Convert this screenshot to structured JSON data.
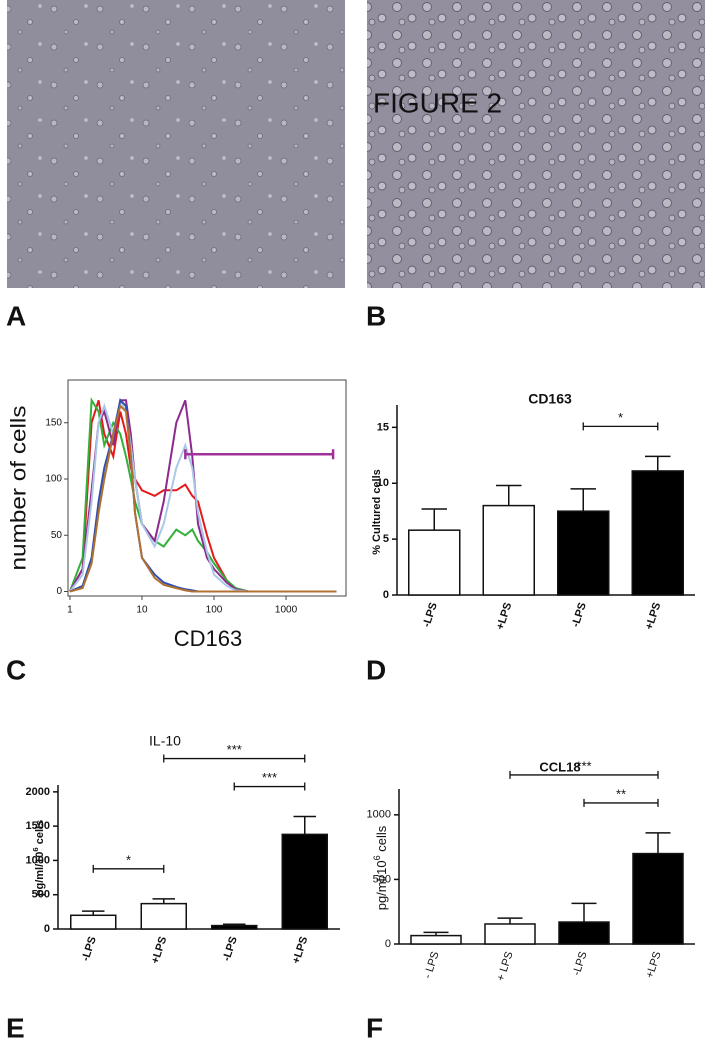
{
  "figure_title": "FIGURE 2",
  "panel_labels": [
    "A",
    "B",
    "C",
    "D",
    "E",
    "F"
  ],
  "chart_data": [
    {
      "type": "line",
      "xlabel": "CD163",
      "ylabel": "number of cells",
      "log_x": true,
      "xlim": [
        0.94,
        6800
      ],
      "ylim": [
        -4,
        188
      ],
      "xticks": [
        1,
        10,
        100,
        1000
      ],
      "yticks": [
        0,
        50,
        100,
        150
      ],
      "x": [
        1,
        1.5,
        2,
        2.5,
        3,
        4,
        5,
        6,
        7,
        8,
        10,
        15,
        20,
        30,
        40,
        50,
        60,
        80,
        100,
        150,
        200,
        300,
        500,
        1000,
        5000
      ],
      "series": [
        {
          "color": "#e41a1c",
          "values": [
            0,
            20,
            150,
            170,
            140,
            120,
            160,
            140,
            110,
            100,
            90,
            85,
            90,
            90,
            95,
            85,
            80,
            50,
            30,
            10,
            2,
            0,
            0,
            0,
            0
          ]
        },
        {
          "color": "#33b03a",
          "values": [
            0,
            30,
            170,
            160,
            130,
            150,
            140,
            120,
            100,
            80,
            60,
            45,
            40,
            55,
            50,
            55,
            45,
            35,
            25,
            10,
            3,
            0,
            0,
            0,
            0
          ]
        },
        {
          "color": "#8e2a8e",
          "values": [
            0,
            20,
            90,
            150,
            160,
            130,
            170,
            170,
            140,
            100,
            60,
            45,
            80,
            150,
            170,
            120,
            60,
            30,
            20,
            8,
            2,
            0,
            0,
            0,
            0
          ]
        },
        {
          "color": "#a9c8e8",
          "values": [
            0,
            15,
            80,
            150,
            165,
            140,
            170,
            160,
            130,
            100,
            60,
            40,
            60,
            110,
            130,
            110,
            70,
            35,
            15,
            5,
            1,
            0,
            0,
            0,
            0
          ]
        },
        {
          "color": "#3050b0",
          "values": [
            0,
            5,
            30,
            80,
            110,
            140,
            170,
            165,
            120,
            70,
            30,
            15,
            8,
            4,
            2,
            1,
            0,
            0,
            0,
            0,
            0,
            0,
            0,
            0,
            0
          ]
        },
        {
          "color": "#b07030",
          "values": [
            0,
            3,
            25,
            70,
            100,
            140,
            165,
            160,
            120,
            70,
            30,
            12,
            6,
            3,
            1,
            0,
            0,
            0,
            0,
            0,
            0,
            0,
            0,
            0,
            0
          ]
        }
      ],
      "gate": {
        "x": [
          40,
          4500
        ],
        "y": 122,
        "color": "#a0309a"
      }
    },
    {
      "type": "bar",
      "title": "CD163",
      "ylabel": "% Cultured cells",
      "categories": [
        "-LPS",
        "+LPS",
        "-LPS",
        "+LPS"
      ],
      "values": [
        5.8,
        8.0,
        7.5,
        11.1
      ],
      "errors": [
        1.9,
        1.8,
        2.0,
        1.3
      ],
      "colors": [
        "#ffffff",
        "#ffffff",
        "#000000",
        "#000000"
      ],
      "ylim": [
        0,
        17
      ],
      "yticks": [
        0,
        5,
        10,
        15
      ],
      "significance": [
        {
          "from": 2,
          "to": 3,
          "label": "*"
        }
      ]
    },
    {
      "type": "bar",
      "title": "IL-10",
      "ylabel": [
        "pg/ml/10",
        "6",
        " cells"
      ],
      "categories": [
        "-LPS",
        "+LPS",
        "-LPS",
        "+LPS"
      ],
      "values": [
        200,
        370,
        50,
        1380
      ],
      "errors": [
        60,
        70,
        20,
        260
      ],
      "colors": [
        "#ffffff",
        "#ffffff",
        "#000000",
        "#000000"
      ],
      "ylim": [
        0,
        2100
      ],
      "yticks": [
        0,
        500,
        1000,
        1500,
        2000
      ],
      "significance": [
        {
          "from": 0,
          "to": 1,
          "label": "*"
        },
        {
          "from": 2,
          "to": 3,
          "label": "***"
        },
        {
          "from": 1,
          "to": 3,
          "label": "***"
        }
      ]
    },
    {
      "type": "bar",
      "title": "CCL18",
      "ylabel": [
        "pg/ml/10",
        "6",
        " cells"
      ],
      "categories": [
        "- LPS",
        "+ LPS",
        "-LPS",
        "+LPS"
      ],
      "values": [
        65,
        155,
        170,
        700
      ],
      "errors": [
        25,
        45,
        145,
        160
      ],
      "colors": [
        "#ffffff",
        "#ffffff",
        "#000000",
        "#000000"
      ],
      "ylim": [
        0,
        1200
      ],
      "yticks": [
        0,
        500,
        1000
      ],
      "significance": [
        {
          "from": 2,
          "to": 3,
          "label": "**"
        },
        {
          "from": 1,
          "to": 3,
          "label": "***"
        }
      ]
    }
  ]
}
